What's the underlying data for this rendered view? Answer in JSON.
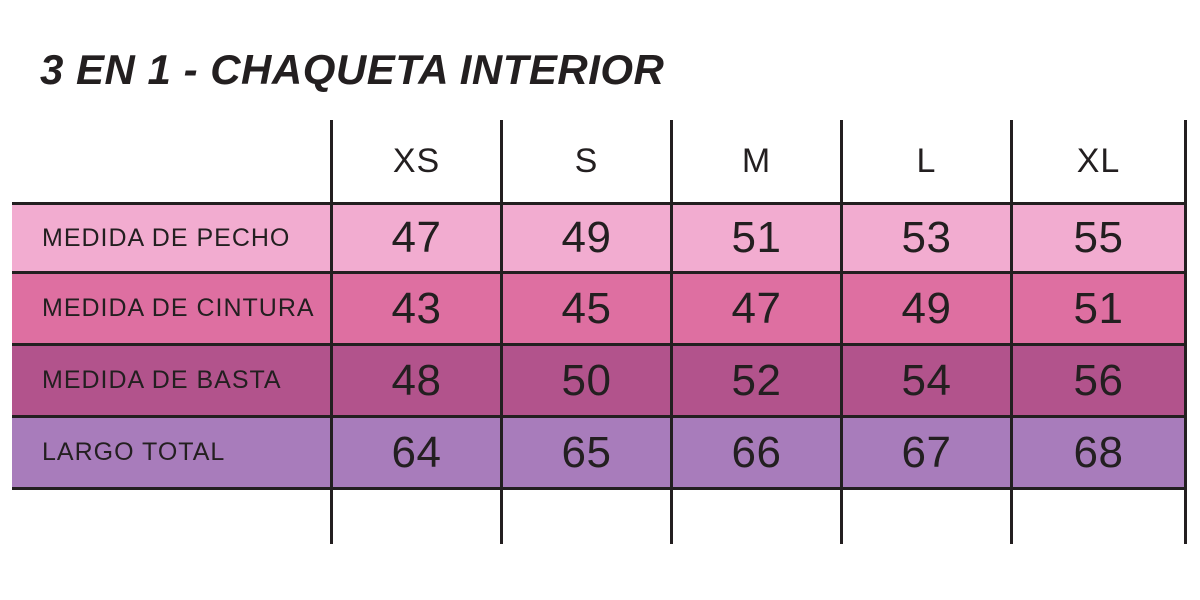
{
  "page": {
    "background_color": "#FFFFFF",
    "text_color": "#231F20",
    "grid_line_color": "#231F20"
  },
  "colors": {
    "row_pecho_bg": "#F2ACD0",
    "row_cintura_bg": "#DE6FA1",
    "row_basta_bg": "#B2538C",
    "row_largo_bg": "#A87CBB",
    "line": "#231F20",
    "text": "#231F20"
  },
  "chart_data": {
    "type": "table",
    "title": "3 EN 1 - CHAQUETA INTERIOR",
    "columns": [
      "XS",
      "S",
      "M",
      "L",
      "XL"
    ],
    "rows": [
      {
        "label": "MEDIDA DE PECHO",
        "values": [
          47,
          49,
          51,
          53,
          55
        ],
        "bg": "#F2ACD0"
      },
      {
        "label": "MEDIDA DE CINTURA",
        "values": [
          43,
          45,
          47,
          49,
          51
        ],
        "bg": "#DE6FA1"
      },
      {
        "label": "MEDIDA DE BASTA",
        "values": [
          48,
          50,
          52,
          54,
          56
        ],
        "bg": "#B2538C"
      },
      {
        "label": "LARGO TOTAL",
        "values": [
          64,
          65,
          66,
          67,
          68
        ],
        "bg": "#A87CBB"
      }
    ]
  }
}
